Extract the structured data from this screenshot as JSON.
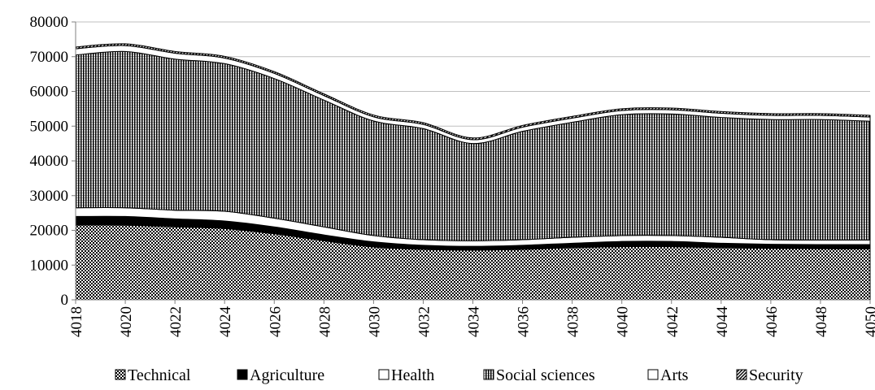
{
  "chart_data": {
    "type": "area",
    "stacked": true,
    "xlabel": "",
    "ylabel": "",
    "ylim": [
      0,
      80000
    ],
    "yticks": [
      0,
      10000,
      20000,
      30000,
      40000,
      50000,
      60000,
      70000,
      80000
    ],
    "x": [
      4018,
      4020,
      4022,
      4024,
      4026,
      4028,
      4030,
      4032,
      4034,
      4036,
      4038,
      4040,
      4042,
      4044,
      4046,
      4048,
      4050
    ],
    "xlim": [
      4018,
      4050
    ],
    "grid": "horizontal",
    "legend_position": "bottom",
    "series": [
      {
        "name": "Technical",
        "pattern": "checker",
        "values": [
          21500,
          21500,
          21000,
          20500,
          19000,
          17000,
          15200,
          14500,
          14300,
          14500,
          15000,
          15300,
          15300,
          15000,
          14800,
          14700,
          14700
        ]
      },
      {
        "name": "Agriculture",
        "pattern": "solid-black",
        "values": [
          2500,
          2500,
          2300,
          2200,
          2000,
          1700,
          1500,
          1200,
          1100,
          1200,
          1300,
          1500,
          1500,
          1300,
          1200,
          1200,
          1200
        ]
      },
      {
        "name": "Health",
        "pattern": "white",
        "values": [
          2500,
          2500,
          2500,
          2800,
          2500,
          2300,
          1800,
          1600,
          1600,
          1600,
          1700,
          1700,
          1700,
          1700,
          1300,
          1300,
          1300
        ]
      },
      {
        "name": "Social sciences",
        "pattern": "vertical-stripes",
        "values": [
          44000,
          45000,
          43500,
          42500,
          40200,
          36500,
          33000,
          32000,
          28000,
          31200,
          33100,
          34800,
          35000,
          34500,
          34600,
          34700,
          34200
        ]
      },
      {
        "name": "Arts",
        "pattern": "white",
        "values": [
          1800,
          1700,
          1700,
          1600,
          1500,
          1300,
          1200,
          1200,
          1100,
          1200,
          1200,
          1200,
          1200,
          1200,
          1200,
          1200,
          1200
        ]
      },
      {
        "name": "Security",
        "pattern": "diagonal-hatch",
        "values": [
          500,
          500,
          500,
          500,
          500,
          500,
          500,
          500,
          500,
          500,
          500,
          500,
          500,
          500,
          500,
          500,
          500
        ]
      }
    ]
  }
}
